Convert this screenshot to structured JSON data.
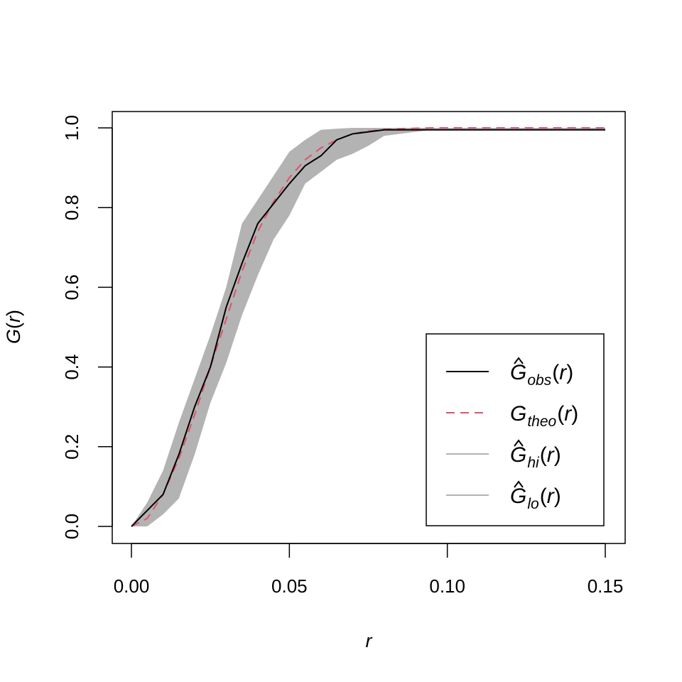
{
  "chart_data": {
    "type": "line",
    "xlabel": "r",
    "ylabel_main": "G",
    "ylabel_arg": "r",
    "xlim": [
      0,
      0.15
    ],
    "ylim": [
      0,
      1
    ],
    "x_ticks": [
      0,
      0.05,
      0.1,
      0.15
    ],
    "x_tick_labels": [
      "0.00",
      "0.05",
      "0.10",
      "0.15"
    ],
    "y_ticks": [
      0,
      0.2,
      0.4,
      0.6,
      0.8,
      1.0
    ],
    "y_tick_labels": [
      "0.0",
      "0.2",
      "0.4",
      "0.6",
      "0.8",
      "1.0"
    ],
    "grid": false,
    "legend_position": "bottom-right",
    "x": [
      0,
      0.005,
      0.01,
      0.015,
      0.02,
      0.025,
      0.03,
      0.035,
      0.04,
      0.045,
      0.05,
      0.055,
      0.06,
      0.065,
      0.07,
      0.075,
      0.08,
      0.085,
      0.09,
      0.095,
      0.1,
      0.11,
      0.12,
      0.13,
      0.14,
      0.15
    ],
    "series": [
      {
        "key": "obs",
        "name": "obs",
        "color": "#000000",
        "dash": "solid",
        "values": [
          0,
          0.04,
          0.08,
          0.18,
          0.3,
          0.4,
          0.55,
          0.66,
          0.76,
          0.81,
          0.86,
          0.905,
          0.93,
          0.97,
          0.985,
          0.99,
          0.995,
          0.995,
          0.995,
          0.995,
          0.995,
          0.995,
          0.995,
          0.995,
          0.995,
          0.995
        ]
      },
      {
        "key": "theo",
        "name": "theo",
        "color": "#DF536B",
        "dash": "dashed",
        "values": [
          0,
          0.02,
          0.08,
          0.17,
          0.28,
          0.4,
          0.52,
          0.64,
          0.74,
          0.815,
          0.875,
          0.92,
          0.95,
          0.97,
          0.985,
          0.992,
          0.996,
          0.998,
          0.999,
          1.0,
          1.0,
          1.0,
          1.0,
          1.0,
          1.0,
          1.0
        ]
      },
      {
        "key": "hi",
        "name": "hi",
        "color": "#B3B3B3",
        "dash": "solid",
        "values": [
          0,
          0.06,
          0.14,
          0.26,
          0.37,
          0.48,
          0.6,
          0.76,
          0.82,
          0.88,
          0.94,
          0.97,
          0.995,
          0.998,
          1.0,
          1.0,
          1.0,
          1.0,
          1.0,
          1.0,
          1.0,
          1.0,
          1.0,
          1.0,
          1.0,
          1.0
        ]
      },
      {
        "key": "lo",
        "name": "lo",
        "color": "#B3B3B3",
        "dash": "solid",
        "values": [
          0,
          0,
          0.03,
          0.07,
          0.18,
          0.31,
          0.41,
          0.53,
          0.63,
          0.72,
          0.78,
          0.86,
          0.89,
          0.92,
          0.935,
          0.955,
          0.98,
          0.985,
          0.99,
          0.995,
          0.995,
          0.995,
          0.995,
          0.995,
          0.995,
          0.995
        ]
      }
    ],
    "envelope_fill": "#B3B3B3"
  }
}
